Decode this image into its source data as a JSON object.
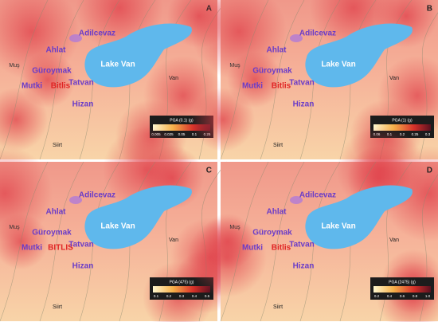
{
  "panels": [
    {
      "letter": "A",
      "legend": {
        "title": "PGA (0.1) (g)",
        "ticks": [
          "0.005",
          "0.025",
          "0.05",
          "0.1",
          "0.25"
        ]
      },
      "labels": [
        "Muş",
        "Ahlat",
        "Adilcevaz",
        "Lake Van",
        "Güroymak",
        "Mutki",
        "Bitlis",
        "Tatvan",
        "Van",
        "Hizan",
        "Siirt"
      ]
    },
    {
      "letter": "B",
      "legend": {
        "title": "PGA (1) (g)",
        "ticks": [
          "0.06",
          "0.1",
          "0.2",
          "0.25",
          "0.3"
        ]
      },
      "labels": [
        "Muş",
        "Ahlat",
        "Adilcevaz",
        "Lake Van",
        "Güroymak",
        "Mutki",
        "Bitlis",
        "Tatvan",
        "Van",
        "Hizan",
        "Siirt"
      ]
    },
    {
      "letter": "C",
      "legend": {
        "title": "PGA (475) (g)",
        "ticks": [
          "0.1",
          "0.2",
          "0.3",
          "0.4",
          "0.5"
        ]
      },
      "labels": [
        "Muş",
        "Ahlat",
        "Adilcevaz",
        "Lake Van",
        "Güroymak",
        "Mutki",
        "BITLIS",
        "Tatvan",
        "Van",
        "Hizan",
        "Siirt"
      ]
    },
    {
      "letter": "D",
      "legend": {
        "title": "PGA (2475) (g)",
        "ticks": [
          "0.2",
          "0.4",
          "0.6",
          "0.8",
          "1.0"
        ]
      },
      "labels": [
        "Muş",
        "Ahlat",
        "Adilcevaz",
        "Lake Van",
        "Güroymak",
        "Mutki",
        "Bitlis",
        "Tatvan",
        "Van",
        "Hizan",
        "Siirt"
      ]
    }
  ]
}
